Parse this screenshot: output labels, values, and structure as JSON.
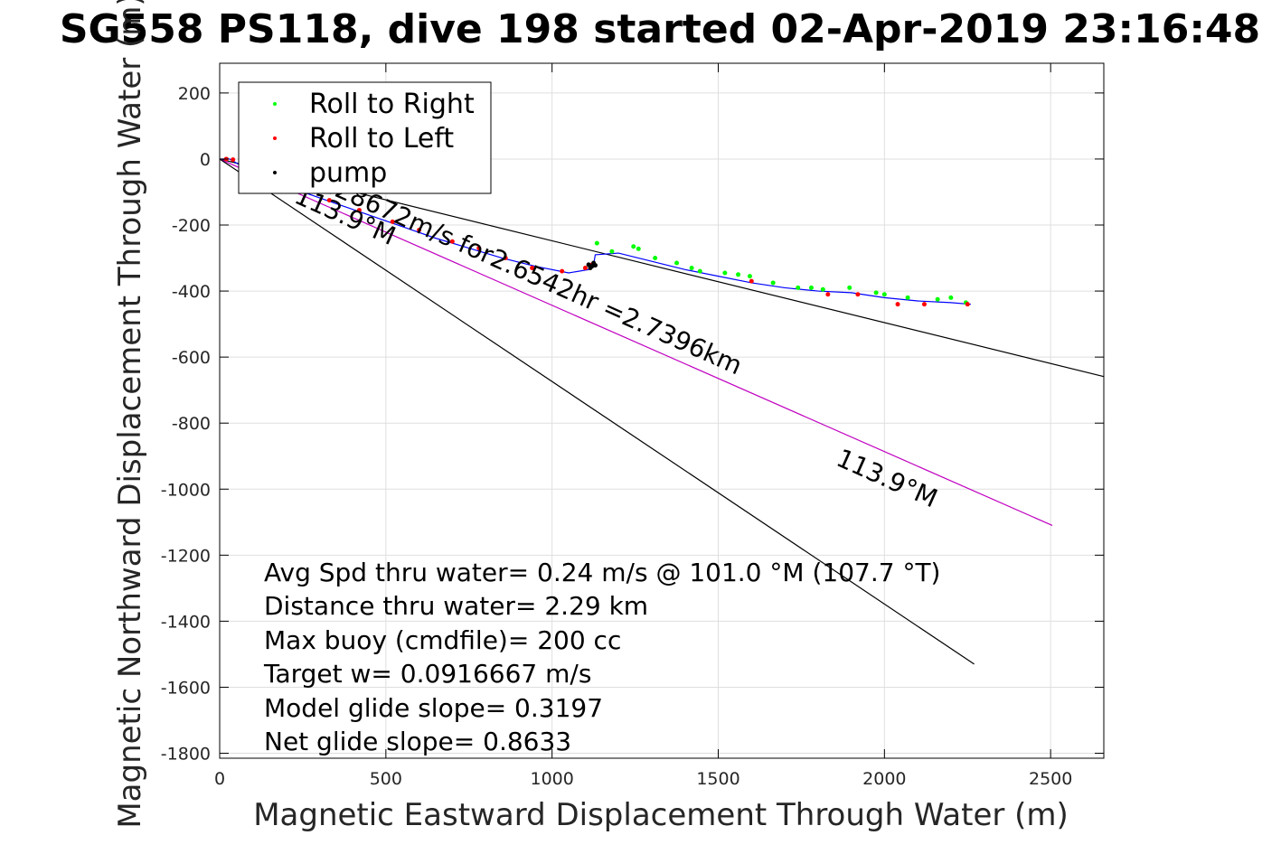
{
  "chart_data": {
    "type": "scatter",
    "title": "SG558 PS118, dive 198 started 02-Apr-2019 23:16:48",
    "xlabel": "Magnetic Eastward Displacement Through Water (m)",
    "ylabel": "Magnetic Northward Displacement Through Water (m)",
    "xlim": [
      0,
      2660
    ],
    "ylim": [
      -1815,
      290
    ],
    "xticks": [
      0,
      500,
      1000,
      1500,
      2000,
      2500
    ],
    "yticks": [
      200,
      0,
      -200,
      -400,
      -600,
      -800,
      -1000,
      -1200,
      -1400,
      -1600,
      -1800
    ],
    "grid": true,
    "legend_position": "top-left",
    "legend": [
      {
        "label": "Roll to Right",
        "color": "#00ff00"
      },
      {
        "label": "Roll to Left",
        "color": "#ff0000"
      },
      {
        "label": "pump",
        "color": "#000000"
      }
    ],
    "track_color": "#0000ff",
    "series": [
      {
        "name": "Roll to Right",
        "color": "#00ff00",
        "x": [
          1135,
          1180,
          1245,
          1310,
          1375,
          1445,
          1520,
          1595,
          1665,
          1740,
          1815,
          1895,
          1975,
          2070,
          2160,
          2245,
          1260,
          1420,
          1560,
          1780,
          2000,
          2200
        ],
        "y": [
          -255,
          -280,
          -265,
          -300,
          -315,
          -340,
          -345,
          -355,
          -375,
          -390,
          -395,
          -390,
          -405,
          -420,
          -425,
          -435,
          -272,
          -330,
          -350,
          -390,
          -410,
          -420
        ]
      },
      {
        "name": "Roll to Left",
        "color": "#ff0000",
        "x": [
          20,
          40,
          180,
          260,
          330,
          420,
          520,
          600,
          700,
          780,
          860,
          940,
          1030,
          1100,
          1120,
          1600,
          1830,
          1920,
          2040,
          2120,
          2250
        ],
        "y": [
          0,
          -2,
          -70,
          -100,
          -125,
          -155,
          -190,
          -215,
          -250,
          -270,
          -300,
          -330,
          -340,
          -330,
          -320,
          -370,
          -410,
          -410,
          -440,
          -440,
          -440
        ]
      },
      {
        "name": "pump",
        "color": "#000000",
        "x": [
          1110,
          1115,
          1120,
          1125,
          1130
        ],
        "y": [
          -320,
          -330,
          -325,
          -315,
          -322
        ]
      }
    ],
    "track": {
      "x": [
        0,
        30,
        80,
        150,
        250,
        350,
        450,
        550,
        650,
        750,
        850,
        950,
        1050,
        1110,
        1125,
        1130,
        1200,
        1300,
        1400,
        1500,
        1600,
        1700,
        1800,
        1900,
        2000,
        2100,
        2200,
        2260
      ],
      "y": [
        0,
        0,
        -30,
        -60,
        -100,
        -135,
        -170,
        -205,
        -240,
        -270,
        -300,
        -325,
        -345,
        -335,
        -320,
        -290,
        -285,
        -310,
        -335,
        -355,
        -375,
        -390,
        -400,
        -405,
        -420,
        -430,
        -435,
        -440
      ]
    },
    "reference_lines": [
      {
        "color": "#000000",
        "x": [
          0,
          2660
        ],
        "y": [
          0,
          -659
        ]
      },
      {
        "color": "#c000c0",
        "x": [
          0,
          2505
        ],
        "y": [
          0,
          -1110
        ]
      },
      {
        "color": "#000000",
        "x": [
          0,
          2270
        ],
        "y": [
          0,
          -1530
        ]
      }
    ],
    "line_labels": [
      {
        "text": "113.9°M",
        "x": 220,
        "y": -130,
        "angle": 24
      },
      {
        "text": ".28672m/s for2.6542hr =2.7396km",
        "x": 320,
        "y": -100,
        "angle": 24
      },
      {
        "text": "113.9°M",
        "x": 1850,
        "y": -925,
        "angle": 24
      }
    ],
    "annotations": [
      "Avg Spd thru water=  0.24 m/s @ 101.0 °M (107.7 °T)",
      "Distance thru water=  2.29 km",
      "Max buoy (cmdfile)= 200 cc",
      "Target w= 0.0916667 m/s",
      "Model glide slope= 0.3197",
      "Net glide slope= 0.8633"
    ]
  }
}
